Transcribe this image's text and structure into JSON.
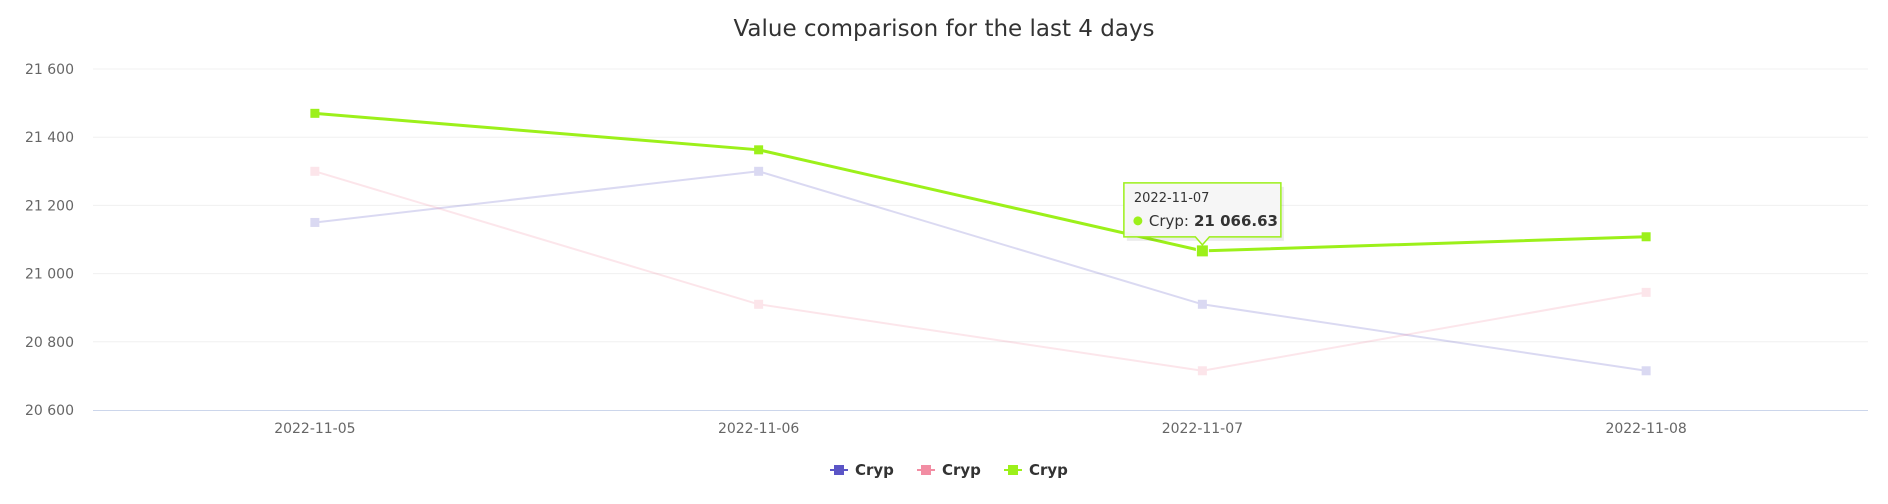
{
  "chart_data": {
    "type": "line",
    "title": "Value comparison for the last 4 days",
    "xlabel": "",
    "ylabel": "",
    "categories": [
      "2022-11-05",
      "2022-11-06",
      "2022-11-07",
      "2022-11-08"
    ],
    "ylim": [
      20600,
      21600
    ],
    "yticks": [
      20600,
      20800,
      21000,
      21200,
      21400,
      21600
    ],
    "ytick_labels": [
      "20 600",
      "20 800",
      "21 000",
      "21 200",
      "21 400",
      "21 600"
    ],
    "grid": true,
    "legend_position": "bottom-center",
    "series": [
      {
        "name": "Cryp",
        "color": "#5b55c6",
        "values": [
          21150,
          21300,
          20910,
          20715
        ],
        "dimmed": true
      },
      {
        "name": "Cryp",
        "color": "#f28da3",
        "values": [
          21300,
          20910,
          20715,
          20945
        ],
        "dimmed": true
      },
      {
        "name": "Cryp",
        "color": "#9cf01a",
        "values": [
          21470,
          21363,
          21066.63,
          21108
        ],
        "dimmed": false
      }
    ],
    "tooltip": {
      "category": "2022-11-07",
      "series_name": "Cryp",
      "value_text": "21 066.63",
      "series_index": 2,
      "point_index": 2
    }
  }
}
